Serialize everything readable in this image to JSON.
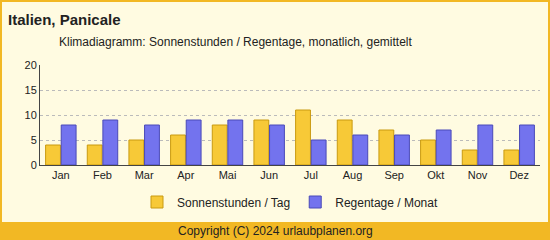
{
  "chart_data": {
    "type": "bar",
    "title": "Italien, Panicale",
    "subtitle": "Klimadiagramm: Sonnenstunden / Regentage, monatlich, gemittelt",
    "categories": [
      "Jan",
      "Feb",
      "Mar",
      "Apr",
      "Mai",
      "Jun",
      "Jul",
      "Aug",
      "Sep",
      "Okt",
      "Nov",
      "Dez"
    ],
    "series": [
      {
        "name": "Sonnenstunden / Tag",
        "color": "#f7c937",
        "values": [
          4,
          4,
          5,
          6,
          8,
          9,
          11,
          9,
          7,
          5,
          3,
          3
        ]
      },
      {
        "name": "Regentage / Monat",
        "color": "#7373ee",
        "values": [
          8,
          9,
          8,
          9,
          9,
          8,
          5,
          6,
          6,
          7,
          8,
          8
        ]
      }
    ],
    "ylim": [
      0,
      20
    ],
    "yticks": [
      0,
      5,
      10,
      15,
      20
    ],
    "grid": true,
    "legend": "bottom",
    "annotations": [
      {
        "text": "Copyright (C) 2024 urlaubplanen.org"
      }
    ]
  }
}
